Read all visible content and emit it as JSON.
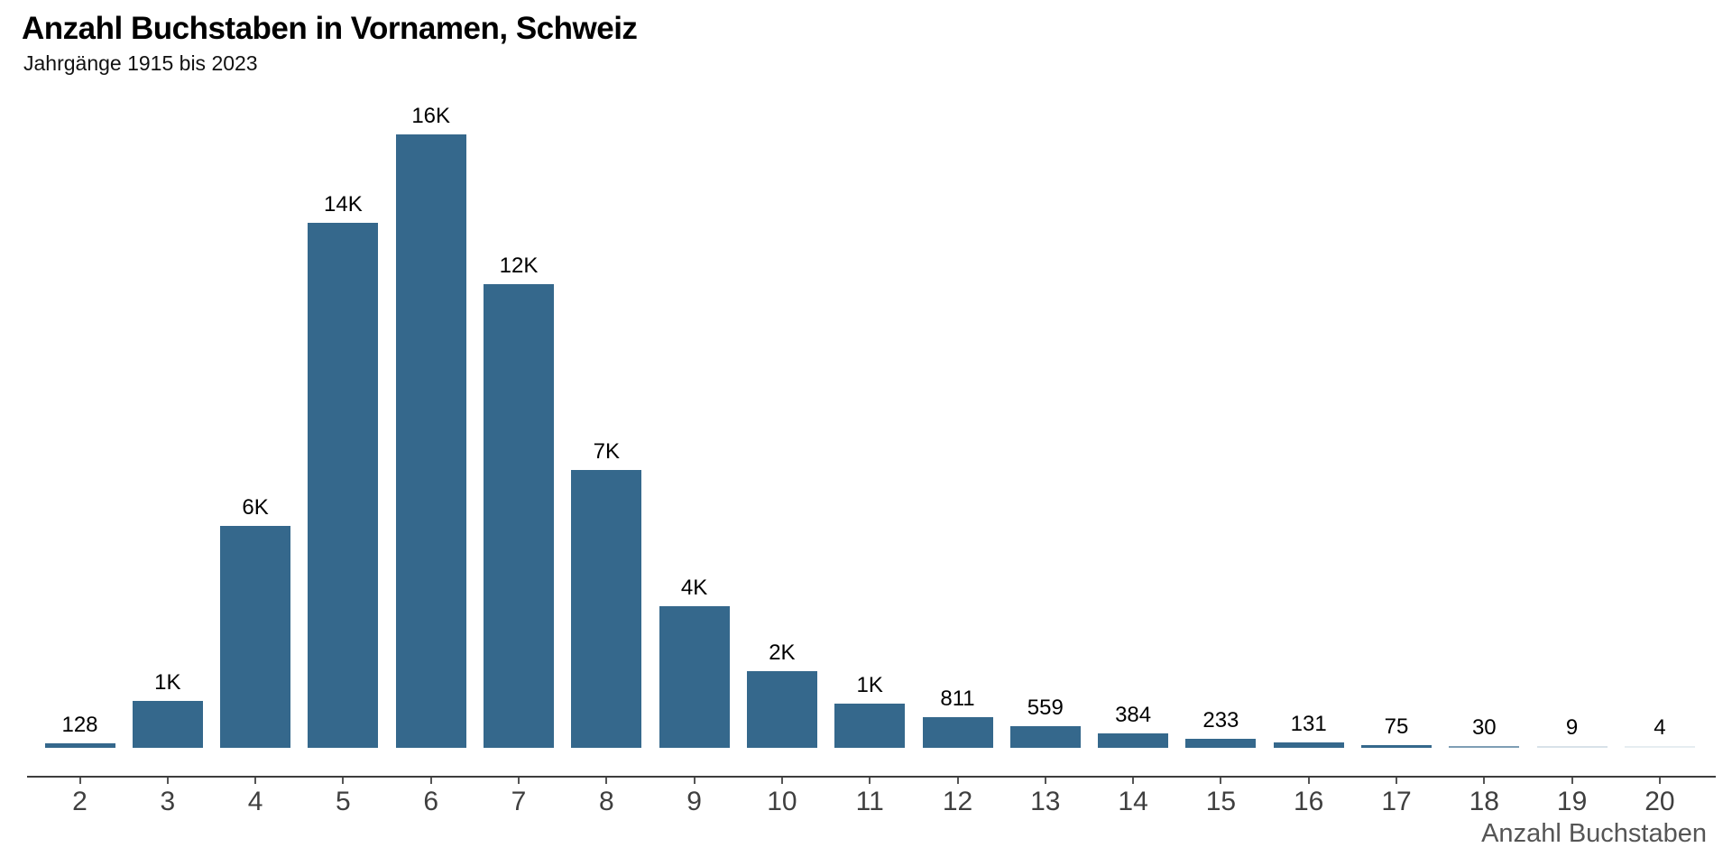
{
  "header": {
    "title": "Anzahl Buchstaben in Vornamen, Schweiz",
    "subtitle": "Jahrgänge 1915 bis 2023"
  },
  "chart_data": {
    "type": "bar",
    "title": "Anzahl Buchstaben in Vornamen, Schweiz",
    "subtitle": "Jahrgänge 1915 bis 2023",
    "xlabel": "Anzahl Buchstaben",
    "ylabel": "",
    "ylim": [
      0,
      16000
    ],
    "grid": false,
    "legend": "none",
    "bar_color": "#35688C",
    "axis_line_color": "#3d3d3d",
    "tick_color": "#555555",
    "tick_label_color": "#3f3f3f",
    "categories": [
      2,
      3,
      4,
      5,
      6,
      7,
      8,
      9,
      10,
      11,
      12,
      13,
      14,
      15,
      16,
      17,
      18,
      19,
      20
    ],
    "values": [
      128,
      1220,
      5800,
      13700,
      16000,
      12100,
      7250,
      3700,
      2000,
      1150,
      811,
      559,
      384,
      233,
      131,
      75,
      30,
      9,
      4
    ],
    "value_labels": [
      "128",
      "1K",
      "6K",
      "14K",
      "16K",
      "12K",
      "7K",
      "4K",
      "2K",
      "1K",
      "811",
      "559",
      "384",
      "233",
      "131",
      "75",
      "30",
      "9",
      "4"
    ]
  }
}
